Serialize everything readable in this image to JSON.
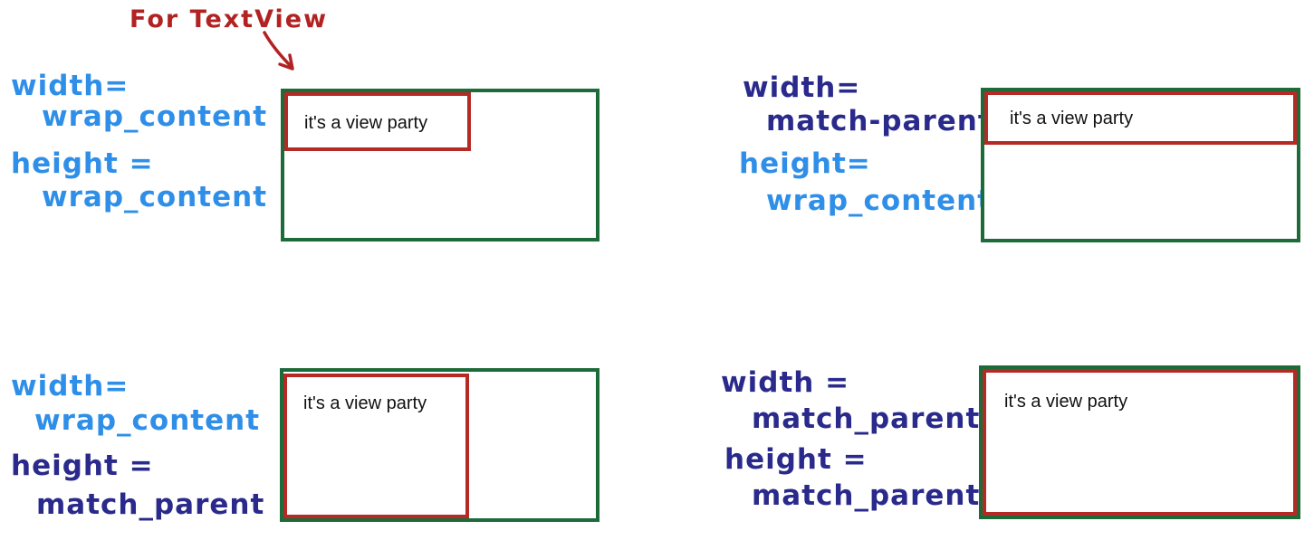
{
  "annotation": {
    "text": "For TextView",
    "color": "#b22222"
  },
  "colors": {
    "parent_border": "#1e6b3a",
    "child_border": "#b52a25",
    "label_light": "#2f8fe8",
    "label_dark": "#2a2a8c"
  },
  "panels": [
    {
      "width_label": "width=",
      "width_value": "wrap_content",
      "height_label": "height =",
      "height_value": "wrap_content",
      "child_text": "it's a view party"
    },
    {
      "width_label": "width=",
      "width_value": "match-parent",
      "height_label": "height=",
      "height_value": "wrap_content",
      "child_text": "it's a view party"
    },
    {
      "width_label": "width=",
      "width_value": "wrap_content",
      "height_label": "height =",
      "height_value": "match_parent",
      "child_text": "it's a view party"
    },
    {
      "width_label": "width =",
      "width_value": "match_parent",
      "height_label": "height =",
      "height_value": "match_parent",
      "child_text": "it's a view party"
    }
  ]
}
